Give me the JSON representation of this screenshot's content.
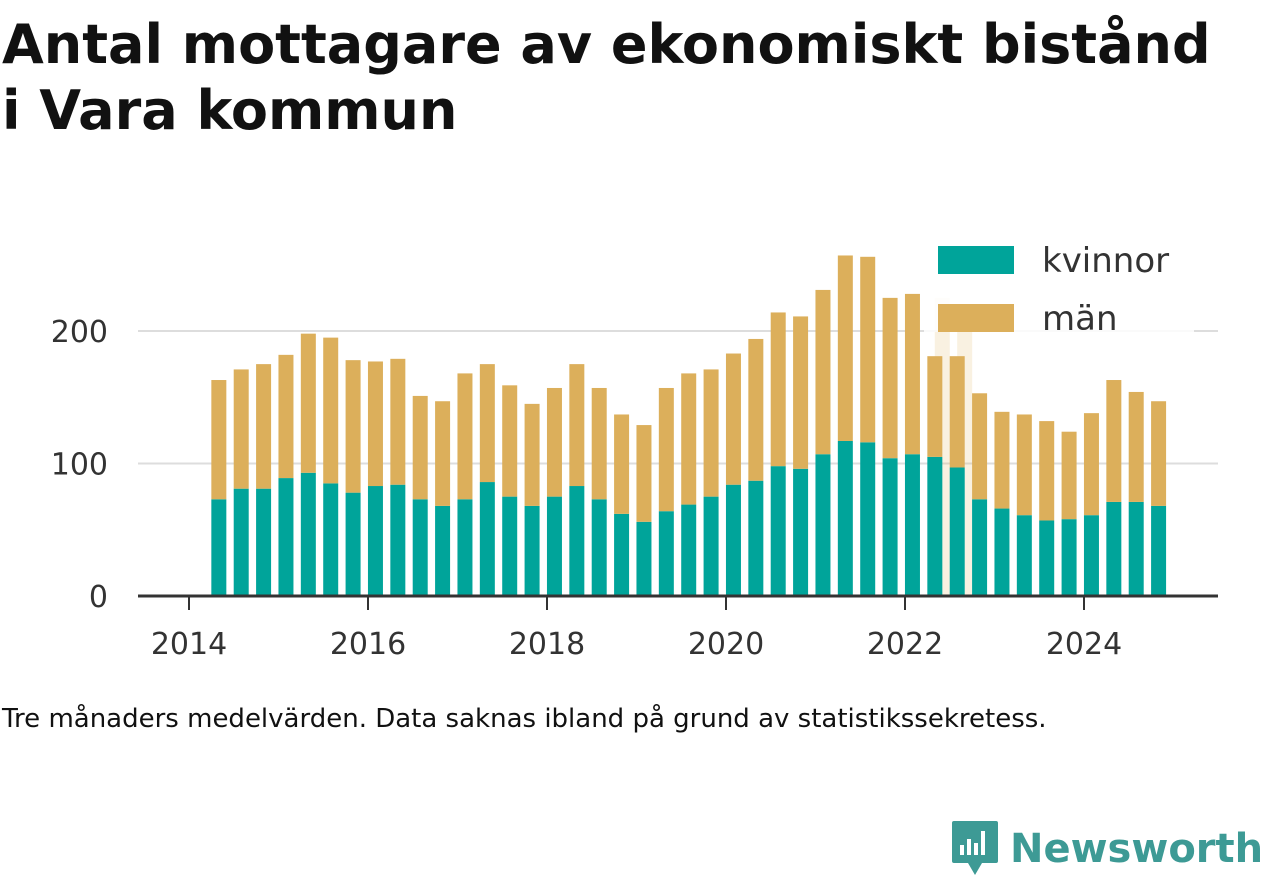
{
  "title_line1": "Antal mottagare av ekonomiskt bistånd",
  "title_line2": "i Vara kommun",
  "caption": "Tre månaders medelvärden. Data saknas ibland på grund av statistikssekretess.",
  "brand": {
    "name": "Newsworthy",
    "icon": "newsworthy-logo-icon",
    "color": "#3d9a95"
  },
  "chart_data": {
    "type": "bar",
    "stacked": true,
    "x_tick_labels": [
      "2014",
      "2016",
      "2018",
      "2020",
      "2022",
      "2024"
    ],
    "y_tick_labels": [
      "0",
      "100",
      "200"
    ],
    "ylim": [
      0,
      270
    ],
    "grid": "horizontal",
    "legend_position": "top-right",
    "x": [
      "2014-05",
      "2014-08",
      "2014-11",
      "2015-02",
      "2015-05",
      "2015-08",
      "2015-11",
      "2016-02",
      "2016-05",
      "2016-08",
      "2016-11",
      "2017-02",
      "2017-05",
      "2017-08",
      "2017-11",
      "2018-02",
      "2018-05",
      "2018-08",
      "2018-11",
      "2019-02",
      "2019-05",
      "2019-08",
      "2019-11",
      "2020-02",
      "2020-05",
      "2020-08",
      "2020-11",
      "2021-02",
      "2021-05",
      "2021-08",
      "2021-11",
      "2022-02",
      "2022-05",
      "2022-08",
      "2022-11",
      "2023-02",
      "2023-05",
      "2023-08",
      "2023-11",
      "2024-02",
      "2024-05",
      "2024-08",
      "2024-11"
    ],
    "series": [
      {
        "name": "kvinnor",
        "color": "#00a49a",
        "values": [
          73,
          81,
          81,
          89,
          93,
          85,
          78,
          83,
          84,
          73,
          68,
          73,
          86,
          75,
          68,
          75,
          83,
          73,
          62,
          56,
          64,
          69,
          75,
          84,
          87,
          98,
          96,
          107,
          117,
          116,
          104,
          107,
          105,
          97,
          73,
          66,
          61,
          57,
          58,
          61,
          71,
          71,
          68
        ]
      },
      {
        "name": "män",
        "color": "#dcaf5b",
        "values": [
          90,
          90,
          94,
          93,
          105,
          110,
          100,
          94,
          95,
          78,
          79,
          95,
          89,
          84,
          77,
          82,
          92,
          84,
          75,
          73,
          93,
          99,
          96,
          99,
          107,
          116,
          115,
          124,
          140,
          140,
          121,
          121,
          76,
          84,
          80,
          73,
          76,
          75,
          66,
          77,
          92,
          83,
          79
        ]
      }
    ],
    "faded_bars": [
      {
        "x": "2022-06",
        "values": [
          null,
          225
        ]
      },
      {
        "x": "2022-09",
        "values": [
          null,
          205
        ]
      }
    ]
  }
}
